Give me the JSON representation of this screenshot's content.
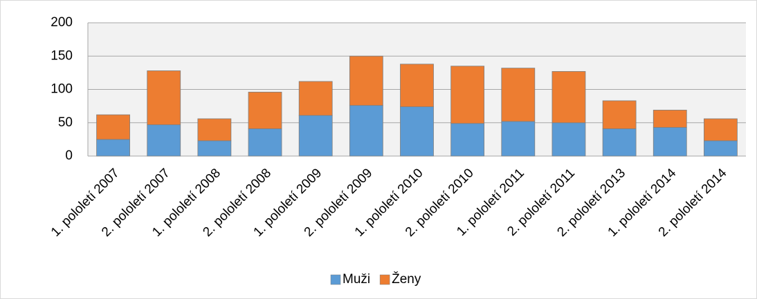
{
  "chart_data": {
    "type": "stacked_bar",
    "categories": [
      "1. pololetí 2007",
      "2. pololetí 2007",
      "1. pololetí 2008",
      "2. pololetí 2008",
      "1. pololetí 2009",
      "2. pololetí 2009",
      "1. pololetí 2010",
      "2. pololetí 2010",
      "1. pololetí 2011",
      "2. pololetí 2011",
      "2. pololetí 2013",
      "1. pololetí 2014",
      "2. pololetí 2014"
    ],
    "series": [
      {
        "name": "Muži",
        "color": "#5b9bd5",
        "values": [
          25,
          47,
          23,
          41,
          61,
          76,
          74,
          49,
          52,
          50,
          41,
          43,
          23
        ]
      },
      {
        "name": "Ženy",
        "color": "#ed7d31",
        "values": [
          37,
          81,
          33,
          55,
          51,
          74,
          64,
          86,
          80,
          77,
          42,
          26,
          33
        ]
      }
    ],
    "ylim": [
      0,
      200
    ],
    "yticks": [
      0,
      50,
      100,
      150,
      200
    ],
    "grid": true,
    "legend": "bottom"
  }
}
